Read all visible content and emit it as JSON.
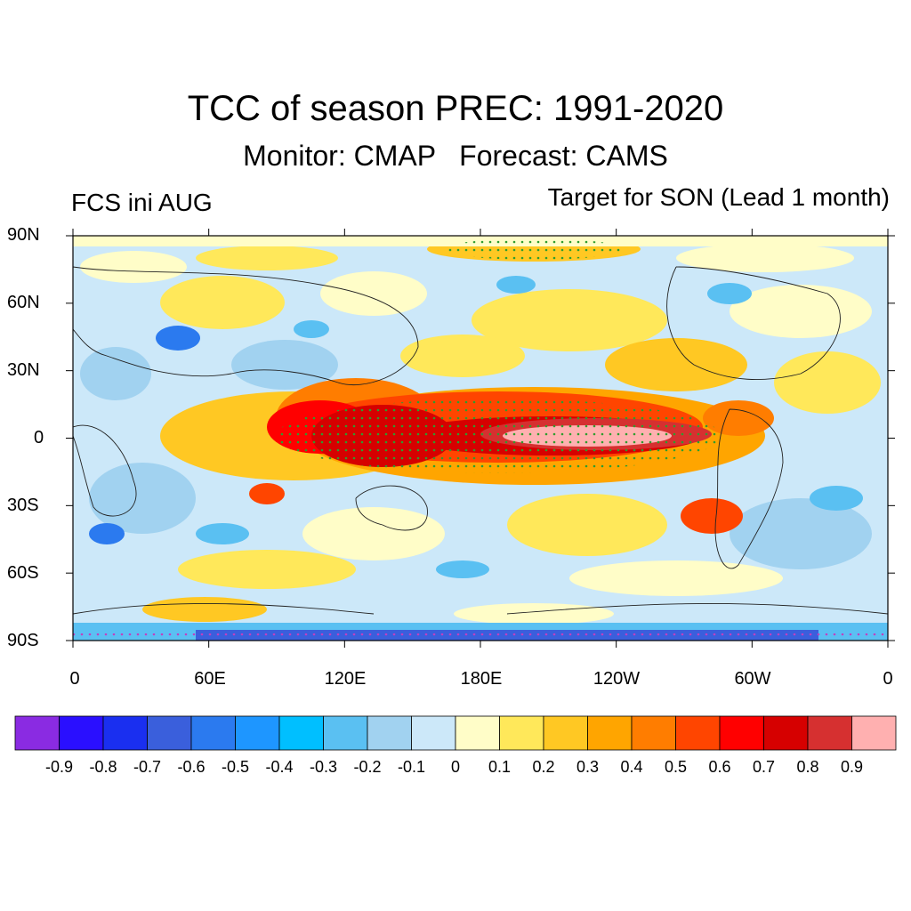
{
  "header": {
    "title": "TCC of season PREC: 1991-2020",
    "subtitle": "Monitor: CMAP   Forecast: CAMS",
    "left_label": "FCS ini AUG",
    "right_label": "Target for SON (Lead 1 month)"
  },
  "axes": {
    "lat_labels": [
      "90N",
      "60N",
      "30N",
      "0",
      "30S",
      "60S",
      "90S"
    ],
    "lon_labels": [
      "0",
      "60E",
      "120E",
      "180E",
      "120W",
      "60W",
      "0"
    ]
  },
  "colorbar": {
    "colors": [
      "#8a2be2",
      "#2a0fff",
      "#1a2ff0",
      "#3a5fdc",
      "#2b7aef",
      "#1e96ff",
      "#00bfff",
      "#5ac0f2",
      "#a1d2f0",
      "#cce8f9",
      "#fffdc8",
      "#ffe85a",
      "#ffc823",
      "#ffa500",
      "#ff7d00",
      "#ff4500",
      "#ff0000",
      "#d60000",
      "#d63030",
      "#ffb0b0"
    ],
    "labels": [
      "-0.9",
      "-0.8",
      "-0.7",
      "-0.6",
      "-0.5",
      "-0.4",
      "-0.3",
      "-0.2",
      "-0.1",
      "0",
      "0.1",
      "0.2",
      "0.3",
      "0.4",
      "0.5",
      "0.6",
      "0.7",
      "0.8",
      "0.9"
    ]
  }
}
